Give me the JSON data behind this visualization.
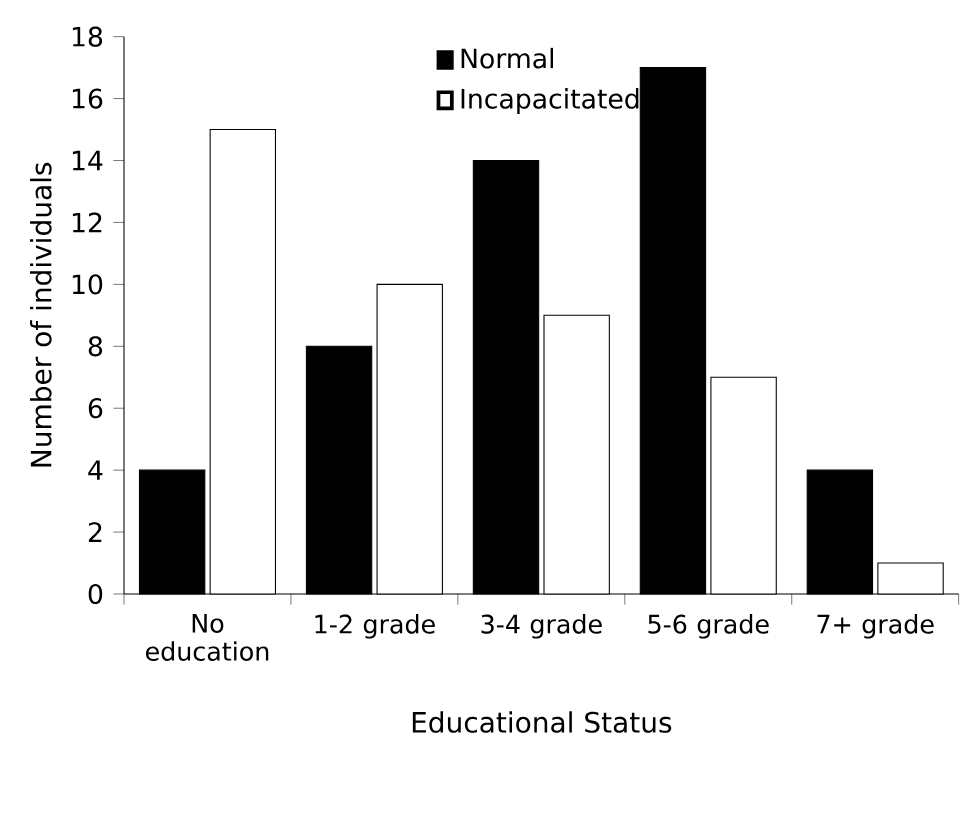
{
  "chart_data": {
    "type": "bar",
    "xlabel": "Educational Status",
    "ylabel": "Number of individuals",
    "categories": [
      "No\neducation",
      "1-2 grade",
      "3-4 grade",
      "5-6 grade",
      "7+ grade"
    ],
    "series": [
      {
        "name": "Normal",
        "color": "#000000",
        "values": [
          4,
          8,
          14,
          17,
          4
        ]
      },
      {
        "name": "Incapacitated",
        "color": "#ffffff",
        "values": [
          15,
          10,
          9,
          7,
          1
        ]
      }
    ],
    "ylim": [
      0,
      18
    ],
    "yticks": [
      0,
      2,
      4,
      6,
      8,
      10,
      12,
      14,
      16,
      18
    ],
    "grid": false,
    "legend": "top"
  }
}
